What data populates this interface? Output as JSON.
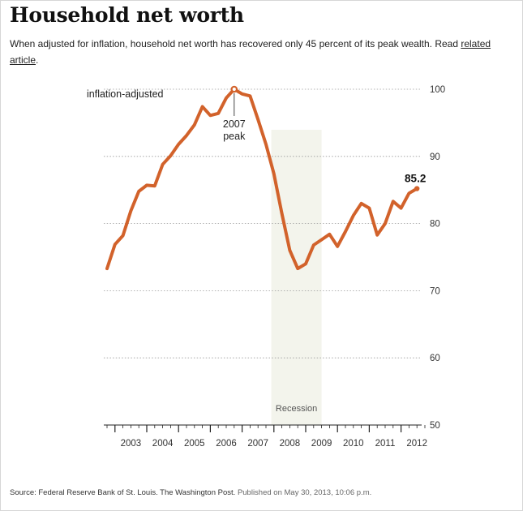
{
  "header": {
    "title": "Household net worth",
    "subtitle_text": "When adjusted for inflation, household net worth has recovered only 45 percent of its peak wealth. Read ",
    "link_text": "related article",
    "subtitle_end": "."
  },
  "chart_data": {
    "type": "line",
    "title": "Household net worth",
    "series_label": "inflation-adjusted",
    "x_years": [
      2003,
      2004,
      2005,
      2006,
      2007,
      2008,
      2009,
      2010,
      2011,
      2012
    ],
    "x_tick_labels": [
      "2003",
      "2004",
      "2005",
      "2006",
      "2007",
      "2008",
      "2009",
      "2010",
      "2011",
      "2012"
    ],
    "y_ticks": [
      50,
      60,
      70,
      80,
      90,
      100
    ],
    "ylim": [
      50,
      100
    ],
    "xlim": [
      2002.75,
      2012.75
    ],
    "series": [
      {
        "name": "inflation-adjusted",
        "color": "#d2622b",
        "x": [
          2002.75,
          2003.0,
          2003.25,
          2003.5,
          2003.75,
          2004.0,
          2004.25,
          2004.5,
          2004.75,
          2005.0,
          2005.25,
          2005.5,
          2005.75,
          2006.0,
          2006.25,
          2006.5,
          2006.75,
          2007.0,
          2007.25,
          2007.5,
          2007.75,
          2008.0,
          2008.25,
          2008.5,
          2008.75,
          2009.0,
          2009.25,
          2009.5,
          2009.75,
          2010.0,
          2010.25,
          2010.5,
          2010.75,
          2011.0,
          2011.25,
          2011.5,
          2011.75,
          2012.0,
          2012.25,
          2012.5
        ],
        "values": [
          73.3,
          76.9,
          78.2,
          81.9,
          84.8,
          85.7,
          85.6,
          88.8,
          90.1,
          91.8,
          93.1,
          94.7,
          97.4,
          96.1,
          96.4,
          98.7,
          100.0,
          99.3,
          99.0,
          95.5,
          91.8,
          87.4,
          81.5,
          76.0,
          73.3,
          74.0,
          76.8,
          77.6,
          78.4,
          76.6,
          78.8,
          81.2,
          83.0,
          82.3,
          78.3,
          80.0,
          83.3,
          82.3,
          84.5,
          85.2
        ]
      }
    ],
    "recession": {
      "start": 2007.917,
      "end": 2009.5,
      "label": "Recession"
    },
    "annotations": {
      "peak": {
        "x": 2006.75,
        "y": 100.0,
        "line1": "2007",
        "line2": "peak"
      },
      "last": {
        "x": 2012.5,
        "y": 85.2,
        "label": "85.2"
      }
    },
    "grid": true
  },
  "footer": {
    "source": "Source: Federal Reserve Bank of St. Louis. The Washington Post.",
    "published": "Published on May 30, 2013, 10:06 p.m."
  }
}
